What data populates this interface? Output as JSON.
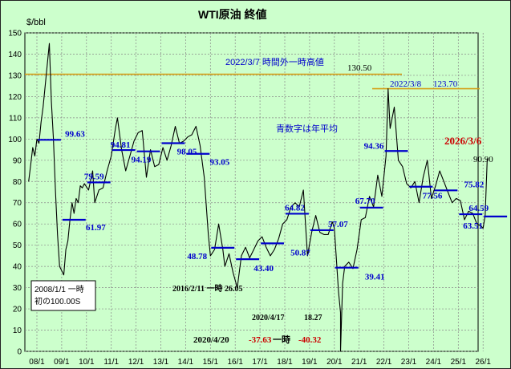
{
  "chart_data": {
    "type": "line",
    "title": "WTI原油 終値",
    "ylabel": "$/bbl",
    "xlabel": "",
    "ylim": [
      0,
      150
    ],
    "y_ticks": [
      0,
      10,
      20,
      30,
      40,
      50,
      60,
      70,
      80,
      90,
      100,
      110,
      120,
      130,
      140,
      150
    ],
    "x_ticks": [
      "08/1",
      "09/1",
      "10/1",
      "11/1",
      "12/1",
      "13/1",
      "14/1",
      "15/1",
      "16/1",
      "17/1",
      "18/1",
      "19/1",
      "20/1",
      "21/1",
      "22/1",
      "23/1",
      "24/1",
      "25/1",
      "26/1"
    ],
    "grid": true,
    "colors": {
      "background": "#ccffcc",
      "price_line": "#000000",
      "average_bars": "#0000cc",
      "annotation_blue": "#0000cc",
      "annotation_red": "#cc0000",
      "reference_line": "#d4a017"
    },
    "series": [
      {
        "values_note": "",
        "x": [
          "2007-09",
          "2007-10",
          "2007-11",
          "2007-12",
          "2008-01",
          "2008-02",
          "2008-03",
          "2008-04",
          "2008-05",
          "2008-06",
          "2008-07",
          "2008-08",
          "2008-09",
          "2008-10",
          "2008-11",
          "2008-12",
          "2009-01",
          "2009-02",
          "2009-03",
          "2009-04",
          "2009-05",
          "2009-06",
          "2009-07",
          "2009-08",
          "2009-09",
          "2009-10",
          "2009-11",
          "2009-12",
          "2010-02",
          "2010-04",
          "2010-05",
          "2010-07",
          "2010-09",
          "2010-11",
          "2011-01",
          "2011-03",
          "2011-04",
          "2011-06",
          "2011-08",
          "2011-10",
          "2011-12",
          "2012-02",
          "2012-04",
          "2012-06",
          "2012-08",
          "2012-10",
          "2012-12",
          "2013-02",
          "2013-04",
          "2013-06",
          "2013-08",
          "2013-10",
          "2013-12",
          "2014-02",
          "2014-04",
          "2014-06",
          "2014-08",
          "2014-10",
          "2014-12",
          "2015-01",
          "2015-03",
          "2015-05",
          "2015-07",
          "2015-08",
          "2015-10",
          "2015-12",
          "2016-02",
          "2016-04",
          "2016-06",
          "2016-08",
          "2016-10",
          "2016-12",
          "2017-02",
          "2017-04",
          "2017-06",
          "2017-08",
          "2017-10",
          "2017-12",
          "2018-02",
          "2018-04",
          "2018-06",
          "2018-08",
          "2018-10",
          "2018-12",
          "2019-02",
          "2019-04",
          "2019-06",
          "2019-08",
          "2019-10",
          "2019-12",
          "2020-01",
          "2020-03",
          "2020-04",
          "2020-04",
          "2020-05",
          "2020-06",
          "2020-08",
          "2020-10",
          "2020-12",
          "2021-02",
          "2021-04",
          "2021-06",
          "2021-08",
          "2021-10",
          "2021-12",
          "2022-02",
          "2022-03",
          "2022-04",
          "2022-06",
          "2022-08",
          "2022-10",
          "2022-12",
          "2023-02",
          "2023-04",
          "2023-06",
          "2023-08",
          "2023-10",
          "2023-12",
          "2024-02",
          "2024-04",
          "2024-06",
          "2024-08",
          "2024-10",
          "2024-12",
          "2025-02",
          "2025-04",
          "2025-06",
          "2025-08",
          "2025-10",
          "2025-12",
          "2026-01",
          "2026-02",
          "2026-03"
        ],
        "values": [
          80,
          88,
          96,
          92,
          100,
          98,
          108,
          115,
          125,
          135,
          145,
          118,
          100,
          75,
          55,
          40,
          38,
          36,
          48,
          52,
          62,
          70,
          65,
          72,
          70,
          78,
          77,
          79,
          76,
          85,
          70,
          76,
          77,
          85,
          92,
          105,
          110,
          95,
          85,
          92,
          99,
          103,
          104,
          82,
          95,
          87,
          88,
          96,
          90,
          97,
          106,
          98,
          99,
          101,
          102,
          106,
          97,
          82,
          55,
          45,
          48,
          60,
          48,
          40,
          46,
          37,
          30,
          45,
          49,
          44,
          48,
          52,
          54,
          49,
          45,
          48,
          53,
          60,
          62,
          68,
          70,
          68,
          76,
          45,
          56,
          64,
          56,
          55,
          55,
          61,
          58,
          28,
          18.27,
          -37.63,
          32,
          40,
          42,
          39,
          48,
          62,
          63,
          73,
          68,
          83,
          73,
          92,
          123.7,
          105,
          115,
          90,
          87,
          79,
          77,
          80,
          70,
          82,
          90,
          72,
          78,
          85,
          80,
          75,
          70,
          72,
          71,
          62,
          66,
          65,
          60,
          59,
          58,
          64,
          90.9
        ]
      }
    ],
    "yearly_averages": [
      {
        "year": "2008",
        "value": 99.63
      },
      {
        "year": "2009",
        "value": 61.97
      },
      {
        "year": "2010",
        "value": 79.59
      },
      {
        "year": "2011",
        "value": 94.81
      },
      {
        "year": "2012",
        "value": 94.19
      },
      {
        "year": "2013",
        "value": 98.05
      },
      {
        "year": "2014",
        "value": 93.05
      },
      {
        "year": "2015",
        "value": 48.78
      },
      {
        "year": "2016",
        "value": 43.4
      },
      {
        "year": "2017",
        "value": 50.87
      },
      {
        "year": "2018",
        "value": 64.82
      },
      {
        "year": "2019",
        "value": 57.07
      },
      {
        "year": "2020",
        "value": 39.41
      },
      {
        "year": "2021",
        "value": 67.7
      },
      {
        "year": "2022",
        "value": 94.36
      },
      {
        "year": "2023",
        "value": 77.56
      },
      {
        "year": "2024",
        "value": 75.82
      },
      {
        "year": "2025",
        "value": 64.59
      },
      {
        "year": "2026",
        "value": 63.51
      }
    ],
    "reference_lines": [
      {
        "value": 130.5
      },
      {
        "value": 123.7
      }
    ],
    "annotations": {
      "peak_2022_label": "2022/3/7 時間外一時高値",
      "peak_2022_value": "130.50",
      "close_2022_label": "2022/3/8",
      "close_2022_value": "123.70",
      "legend_note": "青数字は年平均",
      "latest_date": "2026/3/6",
      "latest_value": "90.90",
      "low_2016": "2016/2/11 一時 26.05",
      "low_2020_date": "2020/4/17",
      "low_2020_value": "18.27",
      "neg_2020_date": "2020/4/20",
      "neg_2020_close": "-37.63",
      "neg_2020_word": "一時",
      "neg_2020_intraday": "-40.32",
      "box_line1": "2008/1/1 一時",
      "box_line2": "初の100.00S"
    }
  }
}
